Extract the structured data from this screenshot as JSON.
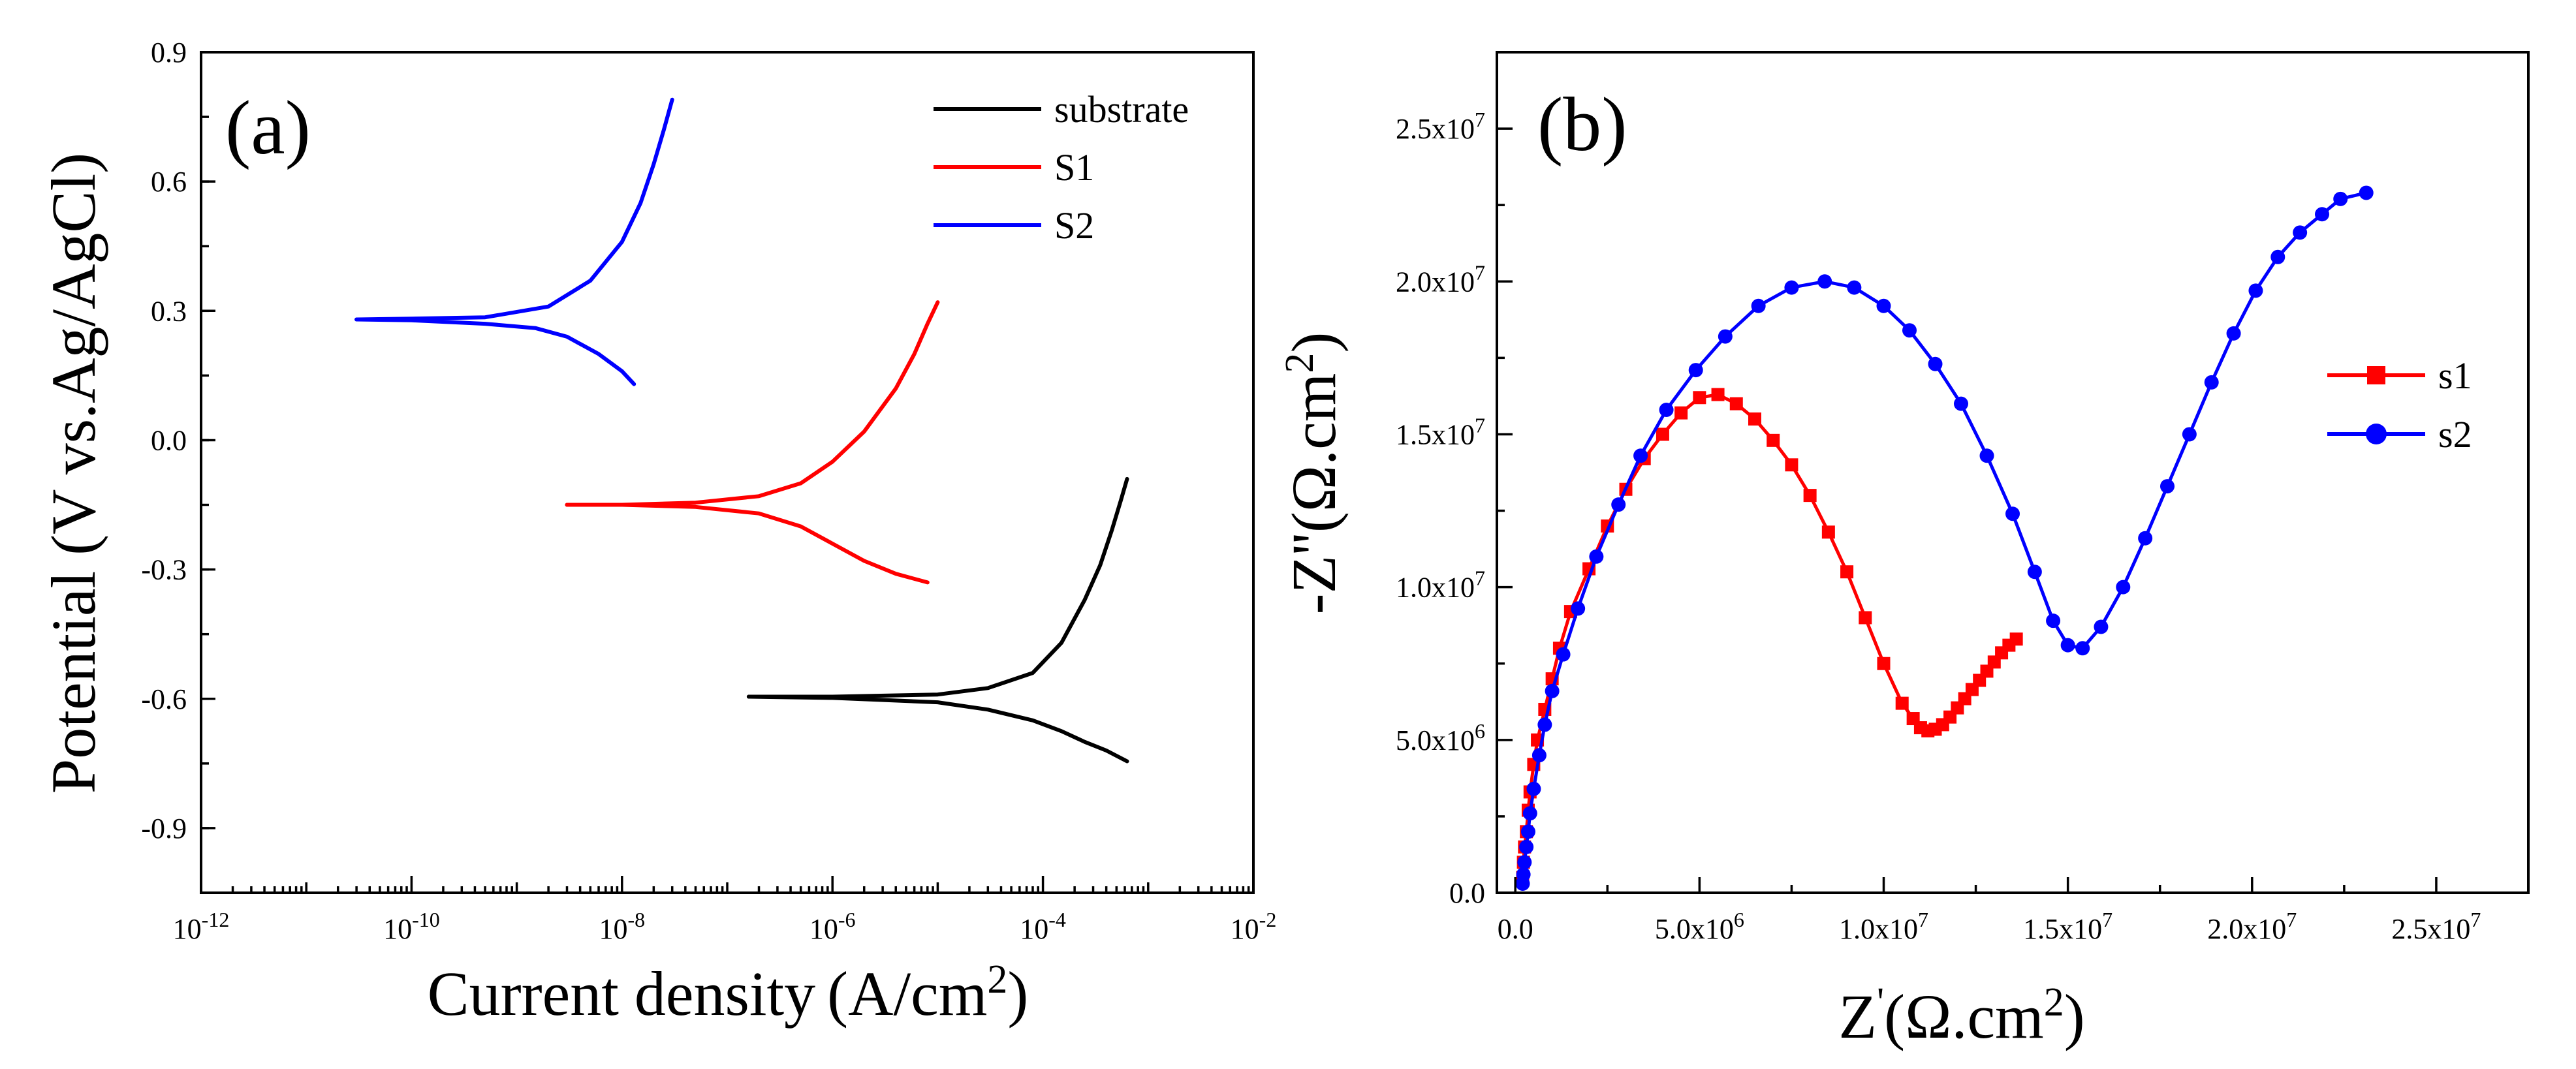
{
  "chart_data": [
    {
      "id": "a",
      "type": "line",
      "panel_label": "(a)",
      "xlabel": "Current density",
      "xlabel_unit": "(A/cm",
      "xlabel_unit_sup": "2",
      "xlabel_unit_close": ")",
      "ylabel": "Potential (V vs.Ag/AgCl)",
      "xscale": "log",
      "xlim": [
        1e-12,
        0.01
      ],
      "ylim": [
        -1.05,
        0.9
      ],
      "x_ticks": [
        {
          "value": 1e-12,
          "base": "10",
          "exp": "-12"
        },
        {
          "value": 1e-10,
          "base": "10",
          "exp": "-10"
        },
        {
          "value": 1e-08,
          "base": "10",
          "exp": "-8"
        },
        {
          "value": 1e-06,
          "base": "10",
          "exp": "-6"
        },
        {
          "value": 0.0001,
          "base": "10",
          "exp": "-4"
        },
        {
          "value": 0.01,
          "base": "10",
          "exp": "-2"
        }
      ],
      "y_ticks": [
        {
          "value": 0.9,
          "label": "0.9"
        },
        {
          "value": 0.6,
          "label": "0.6"
        },
        {
          "value": 0.3,
          "label": "0.3"
        },
        {
          "value": 0.0,
          "label": "0.0"
        },
        {
          "value": -0.3,
          "label": "-0.3"
        },
        {
          "value": -0.6,
          "label": "-0.6"
        },
        {
          "value": -0.9,
          "label": "-0.9"
        }
      ],
      "legend_position": "top-right",
      "series": [
        {
          "name": "substrate",
          "color": "#000000",
          "branches": [
            {
              "x": [
                1.6e-07,
                1e-06,
                1e-05,
                3e-05,
                8e-05,
                0.00015,
                0.00025,
                0.00035,
                0.00045,
                0.00055,
                0.00063
              ],
              "y": [
                -0.595,
                -0.595,
                -0.59,
                -0.575,
                -0.54,
                -0.47,
                -0.37,
                -0.29,
                -0.21,
                -0.14,
                -0.09
              ]
            },
            {
              "x": [
                1.6e-07,
                1e-06,
                1e-05,
                3e-05,
                8e-05,
                0.00015,
                0.00025,
                0.0004,
                0.00063
              ],
              "y": [
                -0.595,
                -0.598,
                -0.608,
                -0.625,
                -0.65,
                -0.675,
                -0.7,
                -0.72,
                -0.745
              ]
            }
          ]
        },
        {
          "name": "S1",
          "color": "#ff0000",
          "branches": [
            {
              "x": [
                3e-09,
                1e-08,
                5e-08,
                2e-07,
                5e-07,
                1e-06,
                2e-06,
                4e-06,
                6e-06,
                8e-06,
                1e-05
              ],
              "y": [
                -0.15,
                -0.15,
                -0.145,
                -0.13,
                -0.1,
                -0.05,
                0.02,
                0.12,
                0.2,
                0.27,
                0.32
              ]
            },
            {
              "x": [
                3e-09,
                1e-08,
                5e-08,
                2e-07,
                5e-07,
                1e-06,
                2e-06,
                4e-06,
                8e-06
              ],
              "y": [
                -0.15,
                -0.15,
                -0.155,
                -0.17,
                -0.2,
                -0.24,
                -0.28,
                -0.31,
                -0.33
              ]
            }
          ]
        },
        {
          "name": "S2",
          "color": "#0000ff",
          "branches": [
            {
              "x": [
                3e-11,
                1e-10,
                5e-10,
                2e-09,
                5e-09,
                1e-08,
                1.5e-08,
                2e-08,
                2.5e-08,
                3e-08
              ],
              "y": [
                0.28,
                0.282,
                0.285,
                0.31,
                0.37,
                0.46,
                0.55,
                0.64,
                0.72,
                0.79
              ]
            },
            {
              "x": [
                3e-11,
                1e-10,
                5e-10,
                1.5e-09,
                3e-09,
                6e-09,
                1e-08,
                1.3e-08
              ],
              "y": [
                0.28,
                0.278,
                0.27,
                0.26,
                0.24,
                0.2,
                0.16,
                0.13
              ]
            }
          ]
        }
      ]
    },
    {
      "id": "b",
      "type": "line",
      "panel_label": "(b)",
      "xlabel": "Z",
      "xlabel_prime": "'",
      "xlabel_unit": "(Ω.cm",
      "xlabel_unit_sup": "2",
      "xlabel_unit_close": ")",
      "ylabel_main": "-Z''(Ω.cm",
      "ylabel_sup": "2",
      "ylabel_close": ")",
      "xlim": [
        -500000,
        27500000
      ],
      "ylim": [
        0,
        27500000
      ],
      "x_ticks": [
        {
          "value": 0,
          "mant": "0.0",
          "exp": ""
        },
        {
          "value": 5000000,
          "mant": "5.0x10",
          "exp": "6"
        },
        {
          "value": 10000000,
          "mant": "1.0x10",
          "exp": "7"
        },
        {
          "value": 15000000,
          "mant": "1.5x10",
          "exp": "7"
        },
        {
          "value": 20000000,
          "mant": "2.0x10",
          "exp": "7"
        },
        {
          "value": 25000000,
          "mant": "2.5x10",
          "exp": "7"
        }
      ],
      "y_ticks": [
        {
          "value": 0,
          "mant": "0.0",
          "exp": ""
        },
        {
          "value": 5000000,
          "mant": "5.0x10",
          "exp": "6"
        },
        {
          "value": 10000000,
          "mant": "1.0x10",
          "exp": "7"
        },
        {
          "value": 15000000,
          "mant": "1.5x10",
          "exp": "7"
        },
        {
          "value": 20000000,
          "mant": "2.0x10",
          "exp": "7"
        },
        {
          "value": 25000000,
          "mant": "2.5x10",
          "exp": "7"
        }
      ],
      "legend_position": "right",
      "series": [
        {
          "name": "s1",
          "color": "#ff0000",
          "marker": "square",
          "x": [
            200000,
            220000,
            250000,
            300000,
            350000,
            400000,
            500000,
            600000,
            800000,
            1000000,
            1200000,
            1500000,
            2000000,
            2500000,
            3000000,
            3500000,
            4000000,
            4500000,
            5000000,
            5500000,
            6000000,
            6500000,
            7000000,
            7500000,
            8000000,
            8500000,
            9000000,
            9500000,
            10000000,
            10500000,
            10800000,
            11000000,
            11200000,
            11400000,
            11600000,
            11800000,
            12000000,
            12200000,
            12400000,
            12600000,
            12800000,
            13000000,
            13200000,
            13400000,
            13600000
          ],
          "y": [
            500000,
            1000000,
            1500000,
            2000000,
            2700000,
            3300000,
            4200000,
            5000000,
            6000000,
            7000000,
            8000000,
            9200000,
            10600000,
            12000000,
            13200000,
            14200000,
            15000000,
            15700000,
            16200000,
            16300000,
            16000000,
            15500000,
            14800000,
            14000000,
            13000000,
            11800000,
            10500000,
            9000000,
            7500000,
            6200000,
            5700000,
            5400000,
            5300000,
            5350000,
            5500000,
            5750000,
            6050000,
            6350000,
            6650000,
            6950000,
            7250000,
            7550000,
            7850000,
            8100000,
            8300000
          ]
        },
        {
          "name": "s2",
          "color": "#0000ff",
          "marker": "circle",
          "x": [
            200000,
            220000,
            250000,
            300000,
            350000,
            400000,
            500000,
            650000,
            800000,
            1000000,
            1300000,
            1700000,
            2200000,
            2800000,
            3400000,
            4100000,
            4900000,
            5700000,
            6600000,
            7500000,
            8400000,
            9200000,
            10000000,
            10700000,
            11400000,
            12100000,
            12800000,
            13500000,
            14100000,
            14600000,
            15000000,
            15400000,
            15900000,
            16500000,
            17100000,
            17700000,
            18300000,
            18900000,
            19500000,
            20100000,
            20700000,
            21300000,
            21900000,
            22400000,
            23100000
          ],
          "y": [
            300000,
            600000,
            1000000,
            1500000,
            2000000,
            2600000,
            3400000,
            4500000,
            5500000,
            6600000,
            7800000,
            9300000,
            11000000,
            12700000,
            14300000,
            15800000,
            17100000,
            18200000,
            19200000,
            19800000,
            20000000,
            19800000,
            19200000,
            18400000,
            17300000,
            16000000,
            14300000,
            12400000,
            10500000,
            8900000,
            8100000,
            8000000,
            8700000,
            10000000,
            11600000,
            13300000,
            15000000,
            16700000,
            18300000,
            19700000,
            20800000,
            21600000,
            22200000,
            22700000,
            22900000
          ]
        }
      ]
    }
  ]
}
